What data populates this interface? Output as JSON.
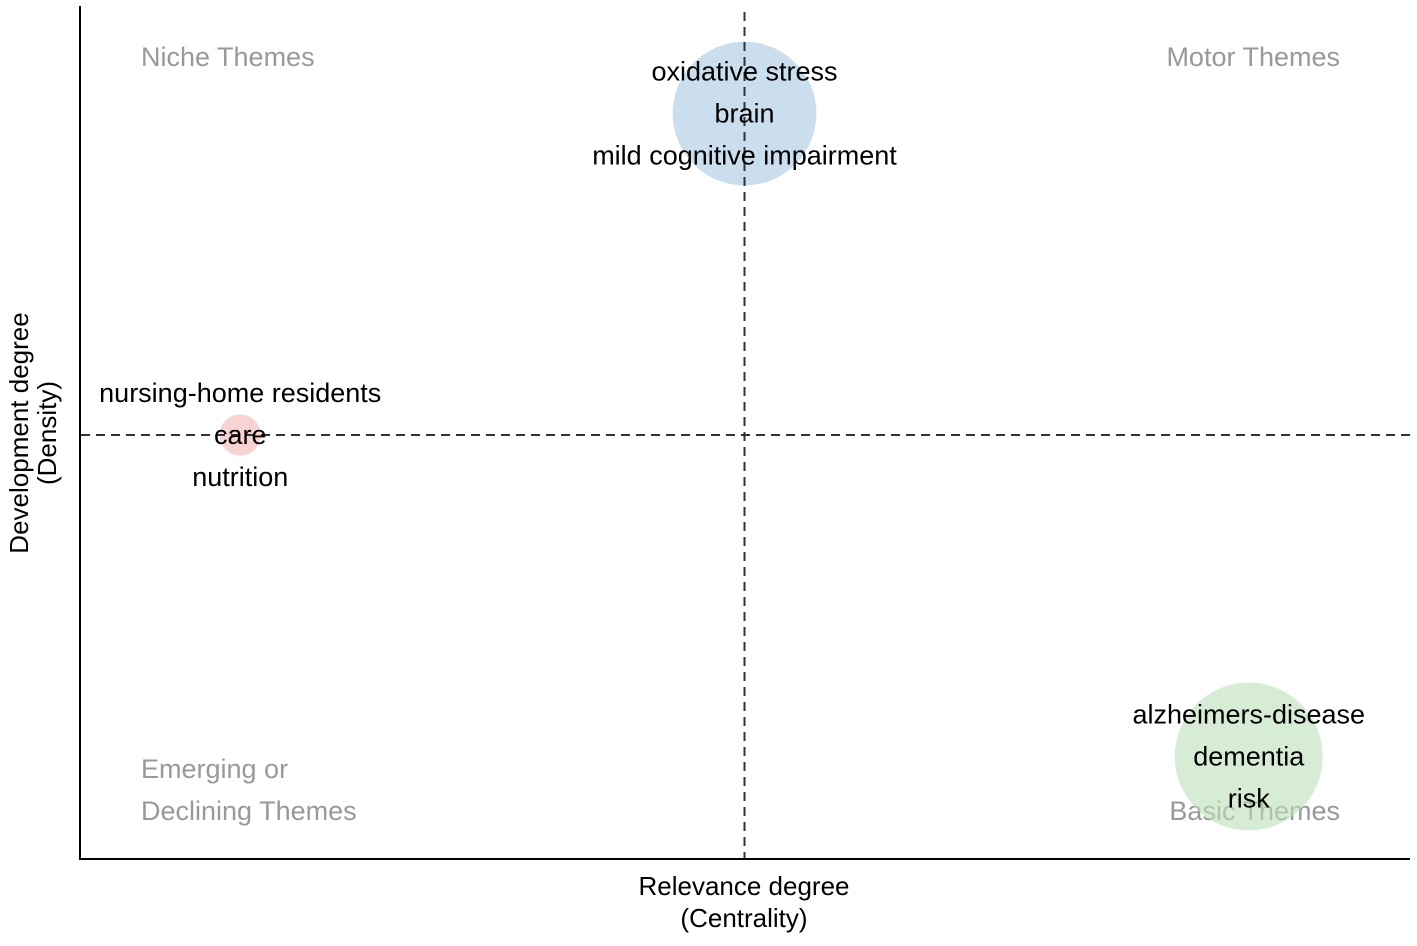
{
  "chart_data": {
    "type": "scatter",
    "title": "",
    "xlabel": {
      "line1": "Relevance degree",
      "line2": "(Centrality)"
    },
    "ylabel": {
      "line1": "Development degree",
      "line2": "(Density)"
    },
    "xlim": [
      0,
      1
    ],
    "ylim": [
      0,
      1
    ],
    "reference_lines": {
      "x": 0.5,
      "y": 0.5
    },
    "quadrants": {
      "top_left": [
        "Niche Themes"
      ],
      "top_right": [
        "Motor Themes"
      ],
      "bottom_left": [
        "Emerging or",
        "Declining Themes"
      ],
      "bottom_right": [
        "Basic Themes"
      ]
    },
    "quadrant_label_color": "#999999",
    "grid": false,
    "clusters": [
      {
        "id": "brain",
        "x": 0.5,
        "y": 0.88,
        "size": 0.85,
        "color": "#a9c8e3",
        "labels": [
          "oxidative stress",
          "brain",
          "mild cognitive impairment"
        ]
      },
      {
        "id": "care",
        "x": 0.12,
        "y": 0.5,
        "size": 0.07,
        "color": "#f4b6b6",
        "labels": [
          "nursing-home residents",
          "care",
          "nutrition"
        ]
      },
      {
        "id": "dementia",
        "x": 0.88,
        "y": 0.12,
        "size": 0.9,
        "color": "#bde0b7",
        "labels": [
          "alzheimers-disease",
          "dementia",
          "risk"
        ]
      }
    ]
  }
}
